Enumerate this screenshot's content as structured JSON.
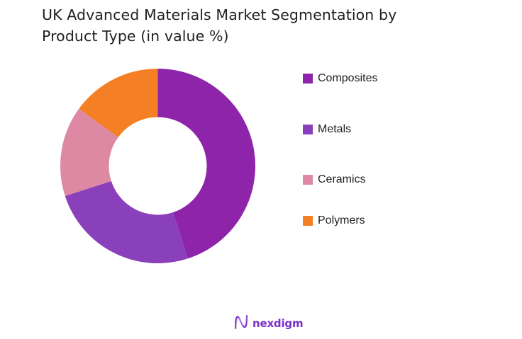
{
  "title": "UK Advanced Materials Market Segmentation by Product Type (in value %)",
  "title_line1": "UK Advanced Materials Market Segmentation by",
  "title_line2": "Product Type (in value %)",
  "legend": [
    {
      "label": "Composites",
      "color": "#8e24aa"
    },
    {
      "label": "Metals",
      "color": "#8a3fbb"
    },
    {
      "label": "Ceramics",
      "color": "#de89a3"
    },
    {
      "label": "Polymers",
      "color": "#f47f24"
    }
  ],
  "logo": {
    "text": "nexdigm",
    "icon": "nexdigm-wave-icon",
    "color": "#7b2fc4"
  },
  "chart_data": {
    "type": "pie",
    "subtype": "donut",
    "title": "UK Advanced Materials Market Segmentation by Product Type (in value %)",
    "categories": [
      "Composites",
      "Metals",
      "Ceramics",
      "Polymers"
    ],
    "values": [
      45,
      25,
      15,
      15
    ],
    "colors": [
      "#8e24aa",
      "#8a3fbb",
      "#de89a3",
      "#f47f24"
    ],
    "unit": "%",
    "start_angle": "12 o'clock, clockwise",
    "legend_position": "right",
    "data_labels": false
  }
}
